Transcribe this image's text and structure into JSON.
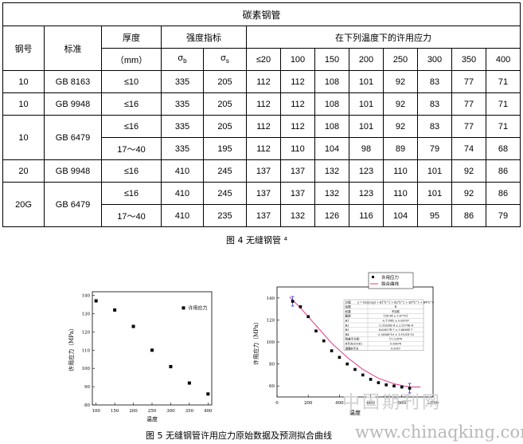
{
  "table": {
    "title": "碳素钢管",
    "h_grade": "钢号",
    "h_standard": "标准",
    "h_thickness": "厚度",
    "h_thickness_unit": "（mm）",
    "h_strength": "强度指标",
    "h_sigma_b": "σb",
    "h_sigma_s": "σs",
    "h_allowable": "在下列温度下的许用应力",
    "temps": [
      "≤20",
      "100",
      "150",
      "200",
      "250",
      "300",
      "350",
      "400"
    ],
    "rows": [
      {
        "grade": "10",
        "std": "GB 8163",
        "thk": "≤10",
        "sb": "335",
        "ss": "205",
        "vals": [
          "112",
          "112",
          "108",
          "101",
          "92",
          "83",
          "77",
          "71"
        ]
      },
      {
        "grade": "10",
        "std": "GB 9948",
        "thk": "≤16",
        "sb": "335",
        "ss": "205",
        "vals": [
          "112",
          "112",
          "108",
          "101",
          "92",
          "83",
          "77",
          "71"
        ]
      },
      {
        "grade": "10",
        "std": "GB 6479",
        "thk": "≤16",
        "sb": "335",
        "ss": "205",
        "vals": [
          "112",
          "112",
          "108",
          "101",
          "92",
          "83",
          "77",
          "71"
        ]
      },
      {
        "grade": "",
        "std": "",
        "thk": "17～40",
        "sb": "335",
        "ss": "195",
        "vals": [
          "112",
          "110",
          "104",
          "98",
          "89",
          "79",
          "74",
          "68"
        ]
      },
      {
        "grade": "20",
        "std": "GB 9948",
        "thk": "≤16",
        "sb": "410",
        "ss": "245",
        "vals": [
          "137",
          "137",
          "132",
          "123",
          "110",
          "101",
          "92",
          "86"
        ]
      },
      {
        "grade": "20G",
        "std": "GB 6479",
        "thk": "≤16",
        "sb": "410",
        "ss": "245",
        "vals": [
          "137",
          "137",
          "132",
          "123",
          "110",
          "101",
          "92",
          "86"
        ]
      },
      {
        "grade": "",
        "std": "",
        "thk": "17～40",
        "sb": "410",
        "ss": "235",
        "vals": [
          "137",
          "132",
          "126",
          "116",
          "104",
          "95",
          "86",
          "79"
        ]
      }
    ]
  },
  "fig4_caption": "图 4 无缝钢管 ⁴",
  "fig5_caption": "图 5 无缝钢管许用应力原始数据及预测拟合曲线",
  "watermark": {
    "cn": "中国期刊网",
    "url": "www.chinaqking.com"
  },
  "chart_data": [
    {
      "type": "scatter",
      "xlabel": "温度",
      "ylabel": "许用应力（MPa）",
      "xlim": [
        90,
        410
      ],
      "ylim": [
        80,
        142
      ],
      "xticks": [
        100,
        150,
        200,
        250,
        300,
        350,
        400
      ],
      "yticks": [
        80,
        90,
        100,
        110,
        120,
        130,
        140
      ],
      "series": [
        {
          "name": "许用应力",
          "x": [
            100,
            150,
            200,
            250,
            300,
            350,
            400
          ],
          "y": [
            137,
            132,
            123,
            110,
            101,
            92,
            86
          ]
        }
      ],
      "legend": "top-right"
    },
    {
      "type": "scatter",
      "xlabel": "温度",
      "ylabel": "许用应力（MPa）",
      "xlim": [
        0,
        1000
      ],
      "ylim": [
        50,
        150
      ],
      "xticks": [
        0,
        200,
        400,
        600,
        800,
        1000
      ],
      "yticks": [
        60,
        80,
        100,
        120,
        140
      ],
      "series": [
        {
          "name": "许用应力",
          "x": [
            100,
            150,
            200,
            250,
            300,
            350,
            400,
            450,
            500,
            550,
            600,
            650,
            700,
            750,
            800,
            850
          ],
          "y": [
            137,
            132,
            123,
            110,
            101,
            92,
            86,
            80,
            75,
            70,
            66,
            63,
            61,
            60,
            59,
            58
          ]
        },
        {
          "name": "拟合曲线",
          "x": [
            80,
            150,
            250,
            350,
            450,
            550,
            650,
            750,
            850,
            920
          ],
          "y": [
            141,
            131,
            115,
            99,
            86,
            75,
            67,
            62,
            59,
            59
          ]
        }
      ],
      "error_bars": {
        "x": [
          100,
          850
        ],
        "y": [
          137,
          58
        ]
      },
      "legend": "top-right",
      "fit_table": {
        "rows": [
          [
            "方程",
            "y = Intercept + B1*x^1 + B2*x^2 + B3*x^3 + B4*x^4"
          ],
          [
            "绘图",
            "B"
          ],
          [
            "权重",
            "不加权"
          ],
          [
            "截距",
            "158.94 ± 5.67701"
          ],
          [
            "B1",
            "-0.17885 ± 0.06707"
          ],
          [
            "B2",
            "-1.31628E-4 ± 2.5379E-4"
          ],
          [
            "B3",
            "4.62857E-7 ± 3.8638E-7"
          ],
          [
            "B4",
            "-2.5656E-10 ± 1.9121E-10"
          ],
          [
            "残差平方和",
            "17.22878"
          ],
          [
            "R平方(COD)",
            "0.99678"
          ],
          [
            "调整R平方",
            "0.9957"
          ]
        ]
      }
    }
  ]
}
